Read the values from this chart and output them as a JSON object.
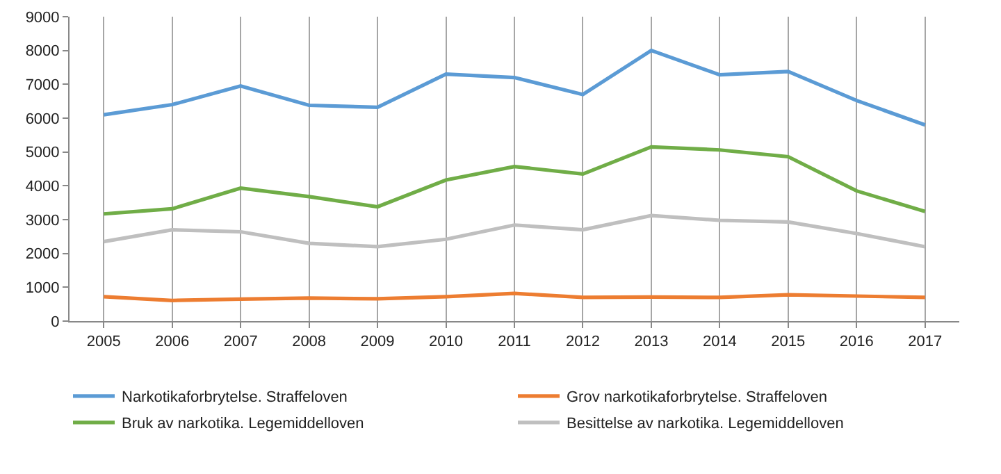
{
  "chart_data": {
    "type": "line",
    "categories": [
      "2005",
      "2006",
      "2007",
      "2008",
      "2009",
      "2010",
      "2011",
      "2012",
      "2013",
      "2014",
      "2015",
      "2016",
      "2017"
    ],
    "series": [
      {
        "name": "Narkotikaforbrytelse. Straffeloven",
        "color": "#5b9bd5",
        "values": [
          6100,
          6400,
          6950,
          6380,
          6320,
          7300,
          7200,
          6700,
          8000,
          7280,
          7380,
          6520,
          5800
        ]
      },
      {
        "name": "Grov narkotikaforbrytelse. Straffeloven",
        "color": "#ed7d31",
        "values": [
          720,
          610,
          650,
          680,
          660,
          720,
          820,
          700,
          710,
          700,
          780,
          740,
          700
        ]
      },
      {
        "name": "Bruk av narkotika. Legemiddelloven",
        "color": "#70ad47",
        "values": [
          3170,
          3320,
          3930,
          3680,
          3380,
          4170,
          4570,
          4350,
          5150,
          5060,
          4860,
          3850,
          3240
        ]
      },
      {
        "name": "Besittelse av narkotika. Legemiddelloven",
        "color": "#bfbfbf",
        "values": [
          2350,
          2700,
          2640,
          2300,
          2200,
          2420,
          2840,
          2700,
          3120,
          2980,
          2930,
          2590,
          2200
        ]
      }
    ],
    "ylim": [
      0,
      9000
    ],
    "yticks": [
      0,
      1000,
      2000,
      3000,
      4000,
      5000,
      6000,
      7000,
      8000,
      9000
    ],
    "grid": "x",
    "legend": "bottom",
    "marker": "none",
    "line_style": "solid"
  }
}
